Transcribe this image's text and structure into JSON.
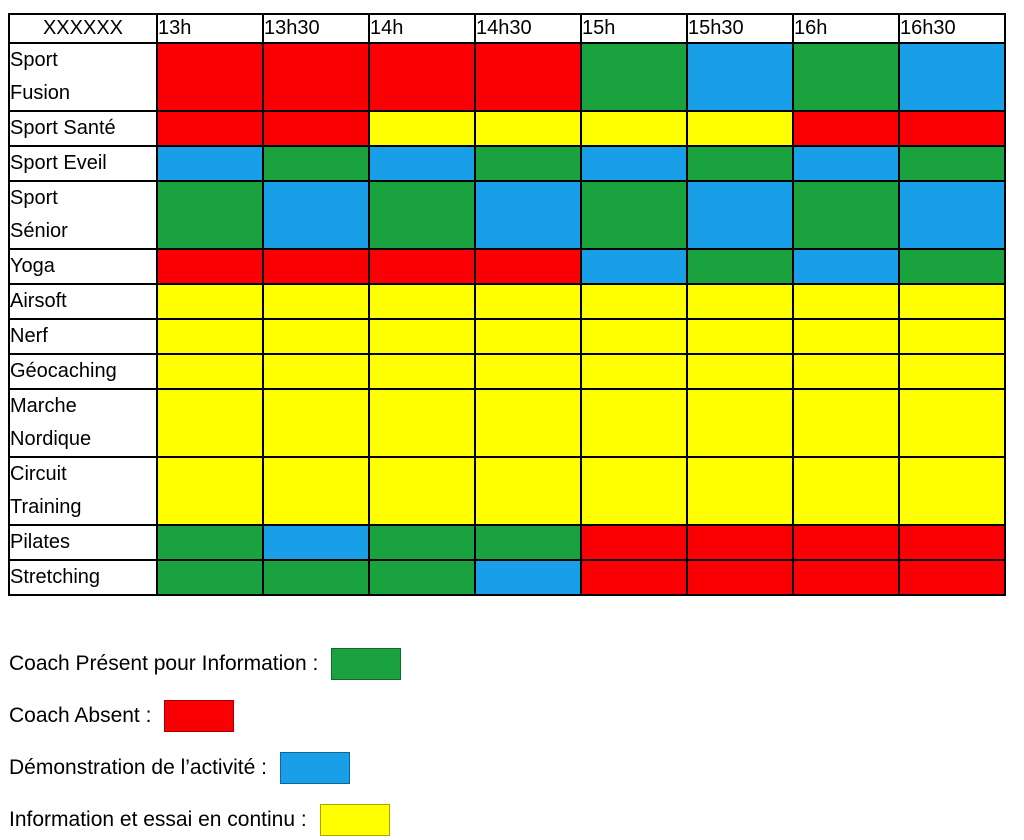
{
  "colors": {
    "red": "#FA0005",
    "green": "#1AA23E",
    "blue": "#189FE8",
    "yellow": "#FFFF00"
  },
  "table": {
    "corner_label": "XXXXXX",
    "time_columns": [
      "13h",
      "13h30",
      "14h",
      "14h30",
      "15h",
      "15h30",
      "16h",
      "16h30"
    ],
    "rows": [
      {
        "label": "Sport Fusion",
        "label_lines": [
          "Sport",
          "Fusion"
        ],
        "cells": [
          "red",
          "red",
          "red",
          "red",
          "green",
          "blue",
          "green",
          "blue"
        ]
      },
      {
        "label": "Sport Santé",
        "label_lines": [
          "Sport Santé"
        ],
        "cells": [
          "red",
          "red",
          "yellow",
          "yellow",
          "yellow",
          "yellow",
          "red",
          "red"
        ]
      },
      {
        "label": "Sport Eveil",
        "label_lines": [
          "Sport Eveil"
        ],
        "cells": [
          "blue",
          "green",
          "blue",
          "green",
          "blue",
          "green",
          "blue",
          "green"
        ]
      },
      {
        "label": "Sport Sénior",
        "label_lines": [
          "Sport",
          "Sénior"
        ],
        "cells": [
          "green",
          "blue",
          "green",
          "blue",
          "green",
          "blue",
          "green",
          "blue"
        ]
      },
      {
        "label": "Yoga",
        "label_lines": [
          "Yoga"
        ],
        "cells": [
          "red",
          "red",
          "red",
          "red",
          "blue",
          "green",
          "blue",
          "green"
        ]
      },
      {
        "label": "Airsoft",
        "label_lines": [
          "Airsoft"
        ],
        "cells": [
          "yellow",
          "yellow",
          "yellow",
          "yellow",
          "yellow",
          "yellow",
          "yellow",
          "yellow"
        ]
      },
      {
        "label": "Nerf",
        "label_lines": [
          "Nerf"
        ],
        "cells": [
          "yellow",
          "yellow",
          "yellow",
          "yellow",
          "yellow",
          "yellow",
          "yellow",
          "yellow"
        ]
      },
      {
        "label": "Géocaching",
        "label_lines": [
          "Géocaching"
        ],
        "cells": [
          "yellow",
          "yellow",
          "yellow",
          "yellow",
          "yellow",
          "yellow",
          "yellow",
          "yellow"
        ]
      },
      {
        "label": "Marche Nordique",
        "label_lines": [
          "Marche",
          "Nordique"
        ],
        "cells": [
          "yellow",
          "yellow",
          "yellow",
          "yellow",
          "yellow",
          "yellow",
          "yellow",
          "yellow"
        ]
      },
      {
        "label": "Circuit Training",
        "label_lines": [
          "Circuit",
          "Training"
        ],
        "cells": [
          "yellow",
          "yellow",
          "yellow",
          "yellow",
          "yellow",
          "yellow",
          "yellow",
          "yellow"
        ]
      },
      {
        "label": "Pilates",
        "label_lines": [
          "Pilates"
        ],
        "cells": [
          "green",
          "blue",
          "green",
          "green",
          "red",
          "red",
          "red",
          "red"
        ]
      },
      {
        "label": "Stretching",
        "label_lines": [
          "Stretching"
        ],
        "cells": [
          "green",
          "green",
          "green",
          "blue",
          "red",
          "red",
          "red",
          "red"
        ]
      }
    ]
  },
  "legend": {
    "items": [
      {
        "label": "Coach Présent pour Information :",
        "color": "green"
      },
      {
        "label": "Coach Absent :",
        "color": "red"
      },
      {
        "label": "Démonstration de l’activité :",
        "color": "blue"
      },
      {
        "label": "Information et essai en continu :",
        "color": "yellow"
      }
    ]
  }
}
